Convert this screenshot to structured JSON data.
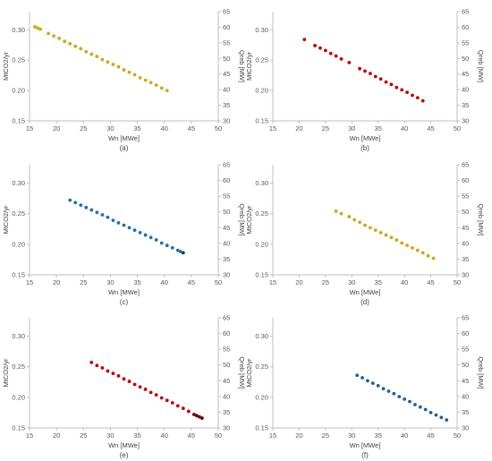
{
  "figure": {
    "background": "#ffffff",
    "axis_color": "#bfbfbf"
  },
  "chart_data": [
    {
      "type": "scatter",
      "panel_label": "(a)",
      "xlabel": "Wn [MWe]",
      "ylabel": "MtCO2/yr",
      "y2label": "Qreb [MW]",
      "xlim": [
        15,
        50
      ],
      "ylim": [
        0.15,
        0.33
      ],
      "y2lim": [
        30,
        65
      ],
      "xticks": [
        15,
        20,
        25,
        30,
        35,
        40,
        45,
        50
      ],
      "yticks": [
        0.15,
        0.2,
        0.25,
        0.3
      ],
      "y2ticks": [
        30,
        35,
        40,
        45,
        50,
        55,
        60,
        65
      ],
      "grid": false,
      "series": [
        {
          "color": "#d4a514",
          "x": [
            16.0,
            16.5,
            17.0,
            18.5,
            19.5,
            20.5,
            21.5,
            22.5,
            23.5,
            24.5,
            25.5,
            26.5,
            27.5,
            28.5,
            29.5,
            30.5,
            31.5,
            32.5,
            33.5,
            34.5,
            35.5,
            36.5,
            37.5,
            38.5,
            39.5,
            40.5
          ],
          "y": [
            0.305,
            0.303,
            0.301,
            0.294,
            0.29,
            0.286,
            0.281,
            0.277,
            0.273,
            0.269,
            0.264,
            0.26,
            0.256,
            0.251,
            0.247,
            0.243,
            0.239,
            0.234,
            0.23,
            0.226,
            0.221,
            0.217,
            0.213,
            0.209,
            0.204,
            0.2
          ]
        }
      ]
    },
    {
      "type": "scatter",
      "panel_label": "(b)",
      "xlabel": "Wn [MWe]",
      "ylabel": "MtCO2/yr",
      "y2label": "Qreb [MW]",
      "xlim": [
        15,
        50
      ],
      "ylim": [
        0.15,
        0.33
      ],
      "y2lim": [
        30,
        65
      ],
      "xticks": [
        15,
        20,
        25,
        30,
        35,
        40,
        45,
        50
      ],
      "yticks": [
        0.15,
        0.2,
        0.25,
        0.3
      ],
      "y2ticks": [
        30,
        35,
        40,
        45,
        50,
        55,
        60,
        65
      ],
      "grid": false,
      "series": [
        {
          "color": "#c00000",
          "x": [
            21.0,
            23.0,
            24.0,
            25.0,
            26.0,
            27.0,
            28.0,
            29.5,
            31.5,
            32.5,
            33.5,
            34.5,
            35.5,
            36.5,
            37.5,
            38.5,
            39.5,
            40.5,
            41.5,
            42.5,
            43.5
          ],
          "y": [
            0.284,
            0.274,
            0.27,
            0.266,
            0.261,
            0.257,
            0.252,
            0.246,
            0.236,
            0.232,
            0.228,
            0.223,
            0.219,
            0.214,
            0.21,
            0.205,
            0.201,
            0.197,
            0.192,
            0.188,
            0.183
          ]
        }
      ]
    },
    {
      "type": "scatter",
      "panel_label": "(c)",
      "xlabel": "Wn [MWe]",
      "ylabel": "MtCO2/yr",
      "y2label": "Qreb [MW]",
      "xlim": [
        15,
        50
      ],
      "ylim": [
        0.15,
        0.33
      ],
      "y2lim": [
        30,
        65
      ],
      "xticks": [
        15,
        20,
        25,
        30,
        35,
        40,
        45,
        50
      ],
      "yticks": [
        0.15,
        0.2,
        0.25,
        0.3
      ],
      "y2ticks": [
        30,
        35,
        40,
        45,
        50,
        55,
        60,
        65
      ],
      "grid": false,
      "series": [
        {
          "color": "#1f6fb2",
          "x": [
            22.5,
            23.5,
            24.5,
            25.5,
            26.5,
            27.5,
            28.5,
            29.5,
            30.5,
            31.5,
            32.5,
            33.5,
            34.5,
            35.5,
            36.5,
            37.5,
            38.5,
            39.5,
            40.5,
            41.5,
            42.5,
            43.0
          ],
          "y": [
            0.272,
            0.268,
            0.264,
            0.26,
            0.256,
            0.252,
            0.248,
            0.244,
            0.239,
            0.235,
            0.231,
            0.227,
            0.223,
            0.219,
            0.215,
            0.211,
            0.207,
            0.202,
            0.198,
            0.194,
            0.19,
            0.188
          ]
        },
        {
          "color": "#0b3b66",
          "x": [
            43.5
          ],
          "y": [
            0.186
          ]
        }
      ]
    },
    {
      "type": "scatter",
      "panel_label": "(d)",
      "xlabel": "Wn [MWe]",
      "ylabel": "MtCO2/yr",
      "y2label": "Qreb [MW]",
      "xlim": [
        15,
        50
      ],
      "ylim": [
        0.15,
        0.33
      ],
      "y2lim": [
        30,
        65
      ],
      "xticks": [
        15,
        20,
        25,
        30,
        35,
        40,
        45,
        50
      ],
      "yticks": [
        0.15,
        0.2,
        0.25,
        0.3
      ],
      "y2ticks": [
        30,
        35,
        40,
        45,
        50,
        55,
        60,
        65
      ],
      "grid": false,
      "series": [
        {
          "color": "#d4a514",
          "x": [
            27.0,
            28.0,
            29.5,
            30.5,
            31.5,
            32.5,
            33.5,
            34.5,
            35.5,
            36.5,
            37.5,
            38.5,
            39.5,
            40.5,
            41.5,
            42.5,
            43.5,
            44.5,
            45.5
          ],
          "y": [
            0.254,
            0.25,
            0.245,
            0.24,
            0.236,
            0.231,
            0.227,
            0.223,
            0.219,
            0.215,
            0.211,
            0.207,
            0.202,
            0.198,
            0.194,
            0.19,
            0.186,
            0.181,
            0.177
          ]
        }
      ]
    },
    {
      "type": "scatter",
      "panel_label": "(e)",
      "xlabel": "Wn [MWe]",
      "ylabel": "MtCO2/yr",
      "y2label": "Qreb [MW]",
      "xlim": [
        15,
        50
      ],
      "ylim": [
        0.15,
        0.33
      ],
      "y2lim": [
        30,
        65
      ],
      "xticks": [
        15,
        20,
        25,
        30,
        35,
        40,
        45,
        50
      ],
      "yticks": [
        0.15,
        0.2,
        0.25,
        0.3
      ],
      "y2ticks": [
        30,
        35,
        40,
        45,
        50,
        55,
        60,
        65
      ],
      "grid": false,
      "series": [
        {
          "color": "#c00000",
          "x": [
            26.5,
            27.5,
            28.5,
            29.5,
            30.5,
            31.5,
            32.5,
            33.5,
            34.5,
            35.5,
            36.5,
            37.5,
            38.5,
            39.5,
            40.5,
            41.5,
            42.5,
            43.5,
            44.5
          ],
          "y": [
            0.257,
            0.252,
            0.248,
            0.243,
            0.239,
            0.235,
            0.23,
            0.226,
            0.221,
            0.217,
            0.213,
            0.208,
            0.204,
            0.199,
            0.195,
            0.191,
            0.186,
            0.182,
            0.177
          ]
        },
        {
          "color": "#6b0000",
          "x": [
            45.5,
            46.0,
            46.5,
            47.0
          ],
          "y": [
            0.172,
            0.17,
            0.168,
            0.166
          ]
        }
      ]
    },
    {
      "type": "scatter",
      "panel_label": "(f)",
      "xlabel": "Wn [MWe]",
      "ylabel": "MtCO2/yr",
      "y2label": "Qreb [MW]",
      "xlim": [
        15,
        50
      ],
      "ylim": [
        0.15,
        0.33
      ],
      "y2lim": [
        30,
        65
      ],
      "xticks": [
        15,
        20,
        25,
        30,
        35,
        40,
        45,
        50
      ],
      "yticks": [
        0.15,
        0.2,
        0.25,
        0.3
      ],
      "y2ticks": [
        30,
        35,
        40,
        45,
        50,
        55,
        60,
        65
      ],
      "grid": false,
      "series": [
        {
          "color": "#1f5f9a",
          "x": [
            31.0,
            32.0,
            33.0,
            34.0,
            35.0,
            36.0,
            37.0,
            38.0,
            39.0,
            40.0,
            41.0,
            42.0,
            43.0,
            44.0,
            45.0,
            46.0,
            47.0,
            48.0
          ],
          "y": [
            0.236,
            0.232,
            0.227,
            0.223,
            0.219,
            0.214,
            0.21,
            0.206,
            0.201,
            0.197,
            0.193,
            0.188,
            0.184,
            0.18,
            0.175,
            0.171,
            0.167,
            0.163
          ]
        }
      ]
    }
  ]
}
